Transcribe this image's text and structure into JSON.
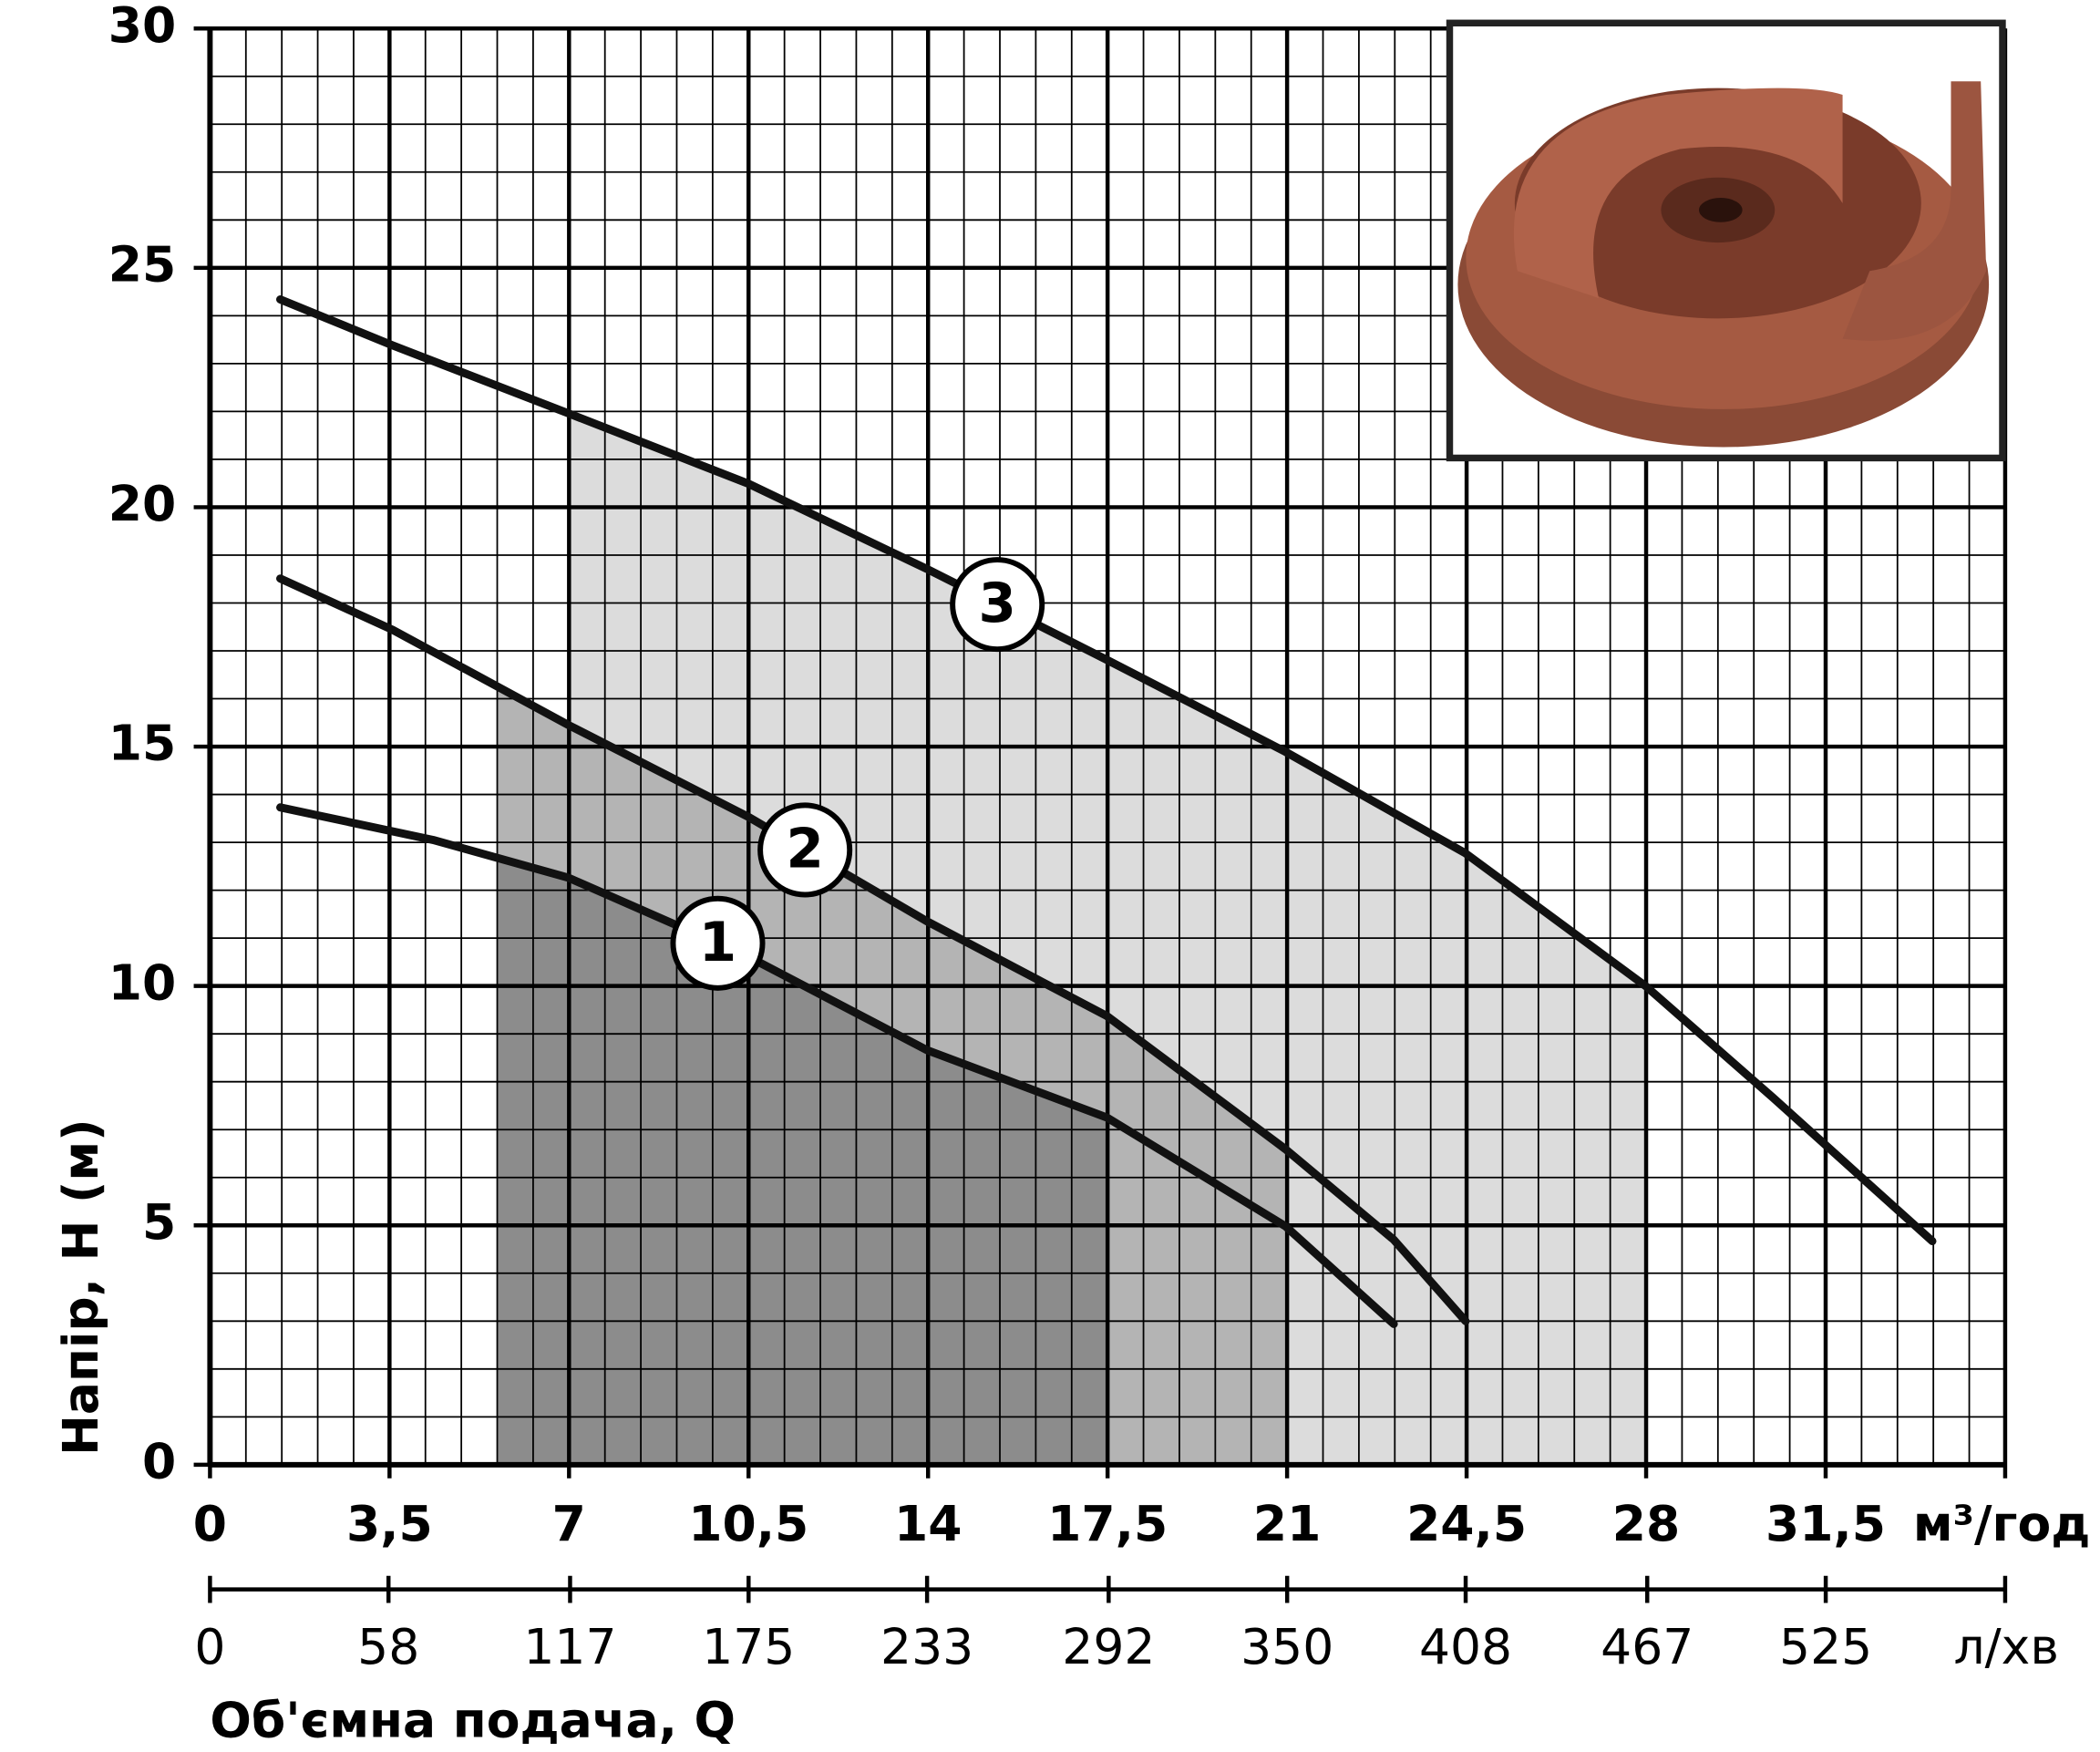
{
  "chart_data": {
    "type": "line",
    "x_label": "Об'ємна подача, Q",
    "y_label": "Напір, Н (м)",
    "x_unit": "м³/год",
    "x2_unit": "л/хв",
    "xlim": [
      0,
      35
    ],
    "xticks": [
      0,
      {
        "value": 3.5,
        "label": "3,5"
      },
      7,
      {
        "value": 10.5,
        "label": "10,5"
      },
      14,
      {
        "value": 17.5,
        "label": "17,5"
      },
      21,
      {
        "value": 24.5,
        "label": "24,5"
      },
      28,
      {
        "value": 31.5,
        "label": "31,5"
      }
    ],
    "x2lim": [
      0,
      583.3
    ],
    "x2ticks": [
      0,
      58,
      117,
      175,
      233,
      292,
      350,
      408,
      467,
      525
    ],
    "ylim": [
      0,
      30
    ],
    "yticks": [
      0,
      5,
      10,
      15,
      20,
      25,
      30
    ],
    "grid": true,
    "series": [
      {
        "name": "1",
        "color": "#111111",
        "fill": "#8c8c8c",
        "range": [
          5.6,
          17.5
        ],
        "x": [
          1.37,
          4.35,
          6.99,
          10.5,
          13.98,
          17.49,
          20.97,
          23.08
        ],
        "values": [
          13.73,
          13.05,
          12.26,
          10.61,
          8.66,
          7.25,
          4.98,
          2.94
        ]
      },
      {
        "name": "2",
        "color": "#111111",
        "fill": "#b4b4b4",
        "range": [
          5.6,
          21
        ],
        "x": [
          1.37,
          3.56,
          6.99,
          10.5,
          13.98,
          17.49,
          20.97,
          23.08,
          24.48
        ],
        "values": [
          18.51,
          17.44,
          15.45,
          13.53,
          11.35,
          9.37,
          6.59,
          4.7,
          3.0
        ]
      },
      {
        "name": "3",
        "color": "#111111",
        "fill": "#dcdcdc",
        "range": [
          7,
          28
        ],
        "x": [
          1.37,
          3.56,
          6.99,
          10.5,
          13.98,
          17.49,
          20.97,
          24.48,
          28.0,
          30.47,
          33.58
        ],
        "values": [
          24.34,
          23.38,
          21.96,
          20.49,
          18.71,
          16.81,
          14.89,
          12.77,
          9.99,
          7.67,
          4.67
        ]
      }
    ]
  }
}
